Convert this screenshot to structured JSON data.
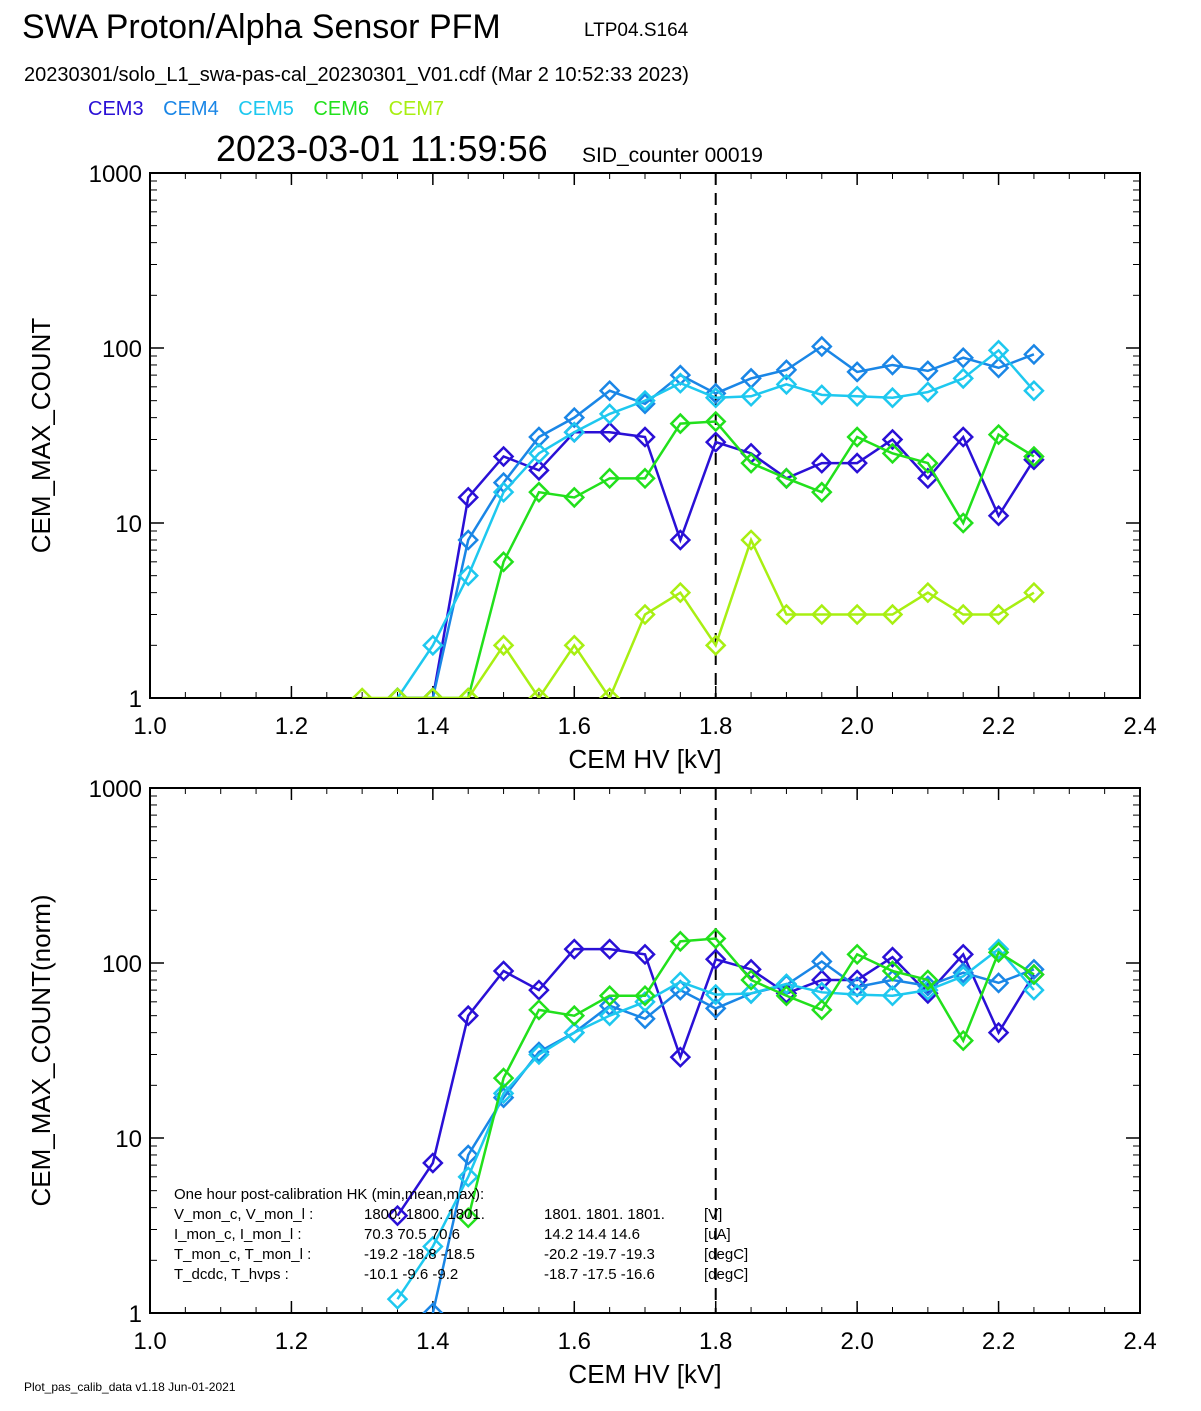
{
  "header": {
    "title": "SWA Proton/Alpha Sensor PFM",
    "run_id": "LTP04.S164",
    "file_line": "20230301/solo_L1_swa-pas-cal_20230301_V01.cdf  (Mar  2 10:52:33 2023)",
    "timestamp": "2023-03-01 11:59:56",
    "sid_counter": "SID_counter 00019"
  },
  "legend": [
    {
      "name": "CEM3",
      "color": "#2a10d6"
    },
    {
      "name": "CEM4",
      "color": "#1a86e6"
    },
    {
      "name": "CEM5",
      "color": "#1ec8ef"
    },
    {
      "name": "CEM6",
      "color": "#22e01c"
    },
    {
      "name": "CEM7",
      "color": "#a8ef12"
    }
  ],
  "footer": "Plot_pas_calib_data v1.18 Jun-01-2021",
  "chart_data": [
    {
      "type": "line",
      "xlabel": "CEM HV [kV]",
      "ylabel": "CEM_MAX_COUNT",
      "xlim": [
        1.0,
        2.4
      ],
      "ylim": [
        1,
        1000
      ],
      "y_scale": "log",
      "x_ticks": [
        "1.0",
        "1.2",
        "1.4",
        "1.6",
        "1.8",
        "2.0",
        "2.2",
        "2.4"
      ],
      "y_ticks": [
        "1",
        "10",
        "100",
        "1000"
      ],
      "vline_x": 1.8,
      "grid": false,
      "series": [
        {
          "name": "CEM3",
          "color": "#2a10d6",
          "x": [
            1.35,
            1.4,
            1.45,
            1.5,
            1.55,
            1.6,
            1.65,
            1.7,
            1.75,
            1.8,
            1.85,
            1.9,
            1.95,
            2.0,
            2.05,
            2.1,
            2.15,
            2.2,
            2.25
          ],
          "y": [
            1,
            1,
            14,
            24,
            20,
            33,
            33,
            31,
            8,
            29,
            25,
            18,
            22,
            22,
            30,
            18,
            31,
            11,
            23
          ]
        },
        {
          "name": "CEM4",
          "color": "#1a86e6",
          "x": [
            1.35,
            1.4,
            1.45,
            1.5,
            1.55,
            1.6,
            1.65,
            1.7,
            1.75,
            1.8,
            1.85,
            1.9,
            1.95,
            2.0,
            2.05,
            2.1,
            2.15,
            2.2,
            2.25
          ],
          "y": [
            1,
            1,
            8,
            17,
            31,
            40,
            57,
            48,
            70,
            55,
            67,
            75,
            102,
            73,
            80,
            74,
            88,
            77,
            92
          ]
        },
        {
          "name": "CEM5",
          "color": "#1ec8ef",
          "x": [
            1.35,
            1.4,
            1.45,
            1.5,
            1.55,
            1.6,
            1.65,
            1.7,
            1.75,
            1.8,
            1.85,
            1.9,
            1.95,
            2.0,
            2.05,
            2.1,
            2.15,
            2.2,
            2.25
          ],
          "y": [
            1,
            2,
            5,
            15,
            25,
            33,
            42,
            50,
            63,
            52,
            53,
            62,
            54,
            53,
            52,
            56,
            67,
            97,
            57
          ]
        },
        {
          "name": "CEM6",
          "color": "#22e01c",
          "x": [
            1.35,
            1.4,
            1.45,
            1.5,
            1.55,
            1.6,
            1.65,
            1.7,
            1.75,
            1.8,
            1.85,
            1.9,
            1.95,
            2.0,
            2.05,
            2.1,
            2.15,
            2.2,
            2.25
          ],
          "y": [
            1,
            1,
            1,
            6,
            15,
            14,
            18,
            18,
            37,
            38,
            22,
            18,
            15,
            31,
            25,
            22,
            10,
            32,
            24
          ]
        },
        {
          "name": "CEM7",
          "color": "#a8ef12",
          "x": [
            1.3,
            1.35,
            1.4,
            1.45,
            1.5,
            1.55,
            1.6,
            1.65,
            1.7,
            1.75,
            1.8,
            1.85,
            1.9,
            1.95,
            2.0,
            2.05,
            2.1,
            2.15,
            2.2,
            2.25
          ],
          "y": [
            1,
            1,
            1,
            1,
            2,
            1,
            2,
            1,
            3,
            4,
            2,
            8,
            3,
            3,
            3,
            3,
            4,
            3,
            3,
            4
          ]
        }
      ]
    },
    {
      "type": "line",
      "xlabel": "CEM HV [kV]",
      "ylabel": "CEM_MAX_COUNT(norm)",
      "xlim": [
        1.0,
        2.4
      ],
      "ylim": [
        1,
        1000
      ],
      "y_scale": "log",
      "x_ticks": [
        "1.0",
        "1.2",
        "1.4",
        "1.6",
        "1.8",
        "2.0",
        "2.2",
        "2.4"
      ],
      "y_ticks": [
        "1",
        "10",
        "100",
        "1000"
      ],
      "vline_x": 1.8,
      "grid": false,
      "series": [
        {
          "name": "CEM3",
          "color": "#2a10d6",
          "x": [
            1.35,
            1.4,
            1.45,
            1.5,
            1.55,
            1.6,
            1.65,
            1.7,
            1.75,
            1.8,
            1.85,
            1.9,
            1.95,
            2.0,
            2.05,
            2.1,
            2.15,
            2.2,
            2.25
          ],
          "y": [
            3.6,
            7.2,
            50,
            90,
            70,
            120,
            120,
            112,
            29,
            105,
            92,
            67,
            80,
            80,
            108,
            67,
            112,
            40,
            86
          ]
        },
        {
          "name": "CEM4",
          "color": "#1a86e6",
          "x": [
            1.4,
            1.45,
            1.5,
            1.55,
            1.6,
            1.65,
            1.7,
            1.75,
            1.8,
            1.85,
            1.9,
            1.95,
            2.0,
            2.05,
            2.1,
            2.15,
            2.2,
            2.25
          ],
          "y": [
            1,
            8,
            17,
            31,
            40,
            57,
            48,
            70,
            55,
            67,
            75,
            102,
            73,
            80,
            74,
            88,
            77,
            92
          ]
        },
        {
          "name": "CEM5",
          "color": "#1ec8ef",
          "x": [
            1.35,
            1.4,
            1.45,
            1.5,
            1.55,
            1.6,
            1.65,
            1.7,
            1.75,
            1.8,
            1.85,
            1.9,
            1.95,
            2.0,
            2.05,
            2.1,
            2.15,
            2.2,
            2.25
          ],
          "y": [
            1.2,
            2.4,
            6,
            18,
            30,
            40,
            50,
            60,
            78,
            66,
            67,
            76,
            68,
            66,
            65,
            70,
            84,
            120,
            70
          ]
        },
        {
          "name": "CEM6",
          "color": "#22e01c",
          "x": [
            1.45,
            1.5,
            1.55,
            1.6,
            1.65,
            1.7,
            1.75,
            1.8,
            1.85,
            1.9,
            1.95,
            2.0,
            2.05,
            2.1,
            2.15,
            2.2,
            2.25
          ],
          "y": [
            3.5,
            22,
            54,
            50,
            65,
            65,
            133,
            138,
            80,
            65,
            54,
            112,
            90,
            80,
            36,
            115,
            86
          ]
        },
        {
          "name": "CEM7",
          "color": "#a8ef12",
          "x": [],
          "y": []
        }
      ],
      "hk_text": {
        "heading": "One hour post-calibration HK (min,mean,max):",
        "rows": [
          {
            "label": "V_mon_c, V_mon_l :",
            "c": "1800.   1800.   1801.",
            "l": "1801.  1801.  1801.",
            "unit": "[V]"
          },
          {
            "label": "I_mon_c,  I_mon_l :",
            "c": "70.3   70.5   70.6",
            "l": "14.2   14.4   14.6",
            "unit": "[uA]"
          },
          {
            "label": "T_mon_c, T_mon_l :",
            "c": "-19.2   -18.8   -18.5",
            "l": "-20.2   -19.7   -19.3",
            "unit": "[degC]"
          },
          {
            "label": "T_dcdc,    T_hvps :",
            "c": "-10.1   -9.6   -9.2",
            "l": "-18.7   -17.5   -16.6",
            "unit": "[degC]"
          }
        ]
      }
    }
  ]
}
